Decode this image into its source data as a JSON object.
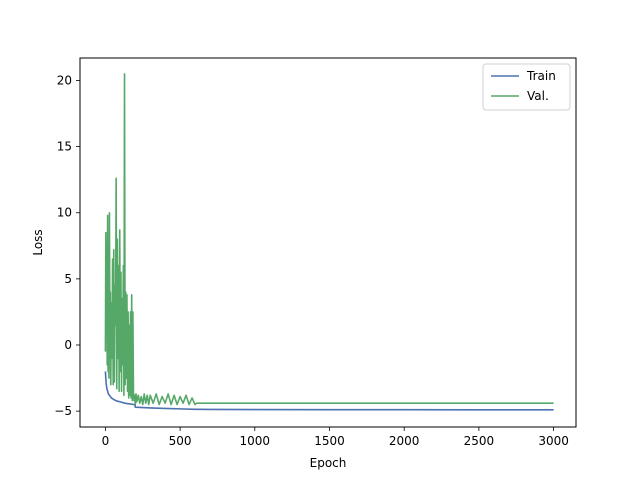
{
  "chart_data": {
    "type": "line",
    "title": "",
    "xlabel": "Epoch",
    "ylabel": "Loss",
    "xlim": [
      -170,
      3150
    ],
    "ylim": [
      -6.2,
      21.7
    ],
    "xticks": [
      0,
      500,
      1000,
      1500,
      2000,
      2500,
      3000
    ],
    "yticks": [
      -5,
      0,
      5,
      10,
      15,
      20
    ],
    "grid": false,
    "legend_position": "top-right",
    "series": [
      {
        "name": "Train",
        "color": "#4c72b0",
        "x": [
          0,
          5,
          10,
          20,
          40,
          60,
          80,
          100,
          130,
          160,
          190,
          199,
          200,
          250,
          300,
          400,
          500,
          600,
          700,
          1000,
          1500,
          2000,
          2500,
          3000
        ],
        "y": [
          -2.0,
          -2.9,
          -3.3,
          -3.7,
          -4.0,
          -4.15,
          -4.25,
          -4.3,
          -4.4,
          -4.45,
          -4.5,
          -4.55,
          -4.7,
          -4.73,
          -4.76,
          -4.8,
          -4.83,
          -4.86,
          -4.87,
          -4.88,
          -4.89,
          -4.89,
          -4.9,
          -4.9
        ]
      },
      {
        "name": "Val.",
        "color": "#55a868",
        "x": [
          0,
          3,
          6,
          9,
          12,
          15,
          18,
          21,
          24,
          27,
          30,
          33,
          36,
          40,
          44,
          48,
          52,
          56,
          60,
          64,
          68,
          72,
          76,
          80,
          84,
          88,
          92,
          96,
          100,
          104,
          108,
          112,
          116,
          120,
          124,
          128,
          132,
          136,
          140,
          144,
          148,
          152,
          156,
          160,
          164,
          168,
          172,
          176,
          180,
          184,
          188,
          192,
          196,
          200,
          205,
          210,
          220,
          230,
          240,
          250,
          260,
          270,
          280,
          290,
          300,
          320,
          340,
          360,
          380,
          400,
          420,
          440,
          460,
          480,
          500,
          520,
          540,
          560,
          580,
          600,
          610,
          615,
          700,
          1000,
          1500,
          2000,
          2500,
          3000
        ],
        "y": [
          -0.5,
          8.5,
          1.0,
          7.5,
          -1.5,
          9.8,
          -2.0,
          5.0,
          -2.5,
          10.0,
          0.5,
          4.0,
          -3.0,
          3.2,
          -1.0,
          6.5,
          -3.0,
          7.2,
          -2.8,
          4.5,
          1.5,
          12.6,
          -3.3,
          8.0,
          -1.0,
          6.0,
          -3.5,
          8.7,
          -2.0,
          5.5,
          -3.5,
          3.5,
          -1.5,
          6.0,
          -3.8,
          20.5,
          -3.0,
          4.0,
          -2.5,
          3.8,
          -3.5,
          2.5,
          -4.0,
          1.5,
          -3.8,
          2.5,
          -4.0,
          3.8,
          -4.2,
          2.5,
          -3.6,
          -4.2,
          -3.8,
          -4.5,
          -3.7,
          -4.3,
          -3.8,
          -4.4,
          -3.9,
          -4.5,
          -3.7,
          -4.4,
          -3.8,
          -4.5,
          -3.8,
          -4.4,
          -3.7,
          -4.5,
          -3.9,
          -4.4,
          -3.7,
          -4.5,
          -3.8,
          -4.5,
          -3.9,
          -4.4,
          -3.8,
          -4.5,
          -4.0,
          -4.5,
          -4.4,
          -4.4,
          -4.4,
          -4.4,
          -4.4,
          -4.4,
          -4.4,
          -4.4
        ]
      }
    ]
  }
}
